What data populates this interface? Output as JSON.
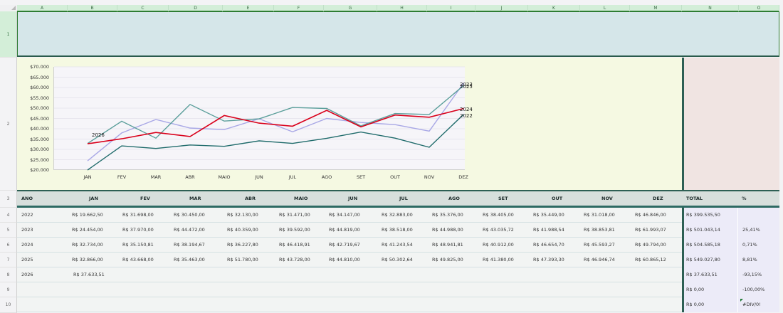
{
  "spreadsheet": {
    "columns": [
      "A",
      "B",
      "C",
      "D",
      "E",
      "F",
      "G",
      "H",
      "I",
      "J",
      "K",
      "L",
      "M",
      "N",
      "O"
    ],
    "rows": [
      "1",
      "2",
      "3",
      "4",
      "5",
      "6",
      "7",
      "8",
      "9",
      "10"
    ]
  },
  "table": {
    "headers": [
      "ANO",
      "JAN",
      "FEV",
      "MAR",
      "ABR",
      "MAIO",
      "JUN",
      "JUL",
      "AGO",
      "SET",
      "OUT",
      "NOV",
      "DEZ",
      "TOTAL",
      "%"
    ],
    "rows": [
      {
        "ano": "2022",
        "values": [
          "R$ 19.662,50",
          "R$ 31.698,00",
          "R$ 30.450,00",
          "R$ 32.130,00",
          "R$ 31.471,00",
          "R$ 34.147,00",
          "R$ 32.883,00",
          "R$ 35.376,00",
          "R$ 38.405,00",
          "R$ 35.449,00",
          "R$ 31.018,00",
          "R$ 46.846,00"
        ],
        "total": "R$ 399.535,50",
        "pct": ""
      },
      {
        "ano": "2023",
        "values": [
          "R$ 24.454,00",
          "R$ 37.970,00",
          "R$ 44.472,00",
          "R$ 40.359,00",
          "R$ 39.592,00",
          "R$ 44.819,00",
          "R$ 38.518,00",
          "R$ 44.988,00",
          "R$ 43.035,72",
          "R$ 41.988,54",
          "R$ 38.853,81",
          "R$ 61.993,07"
        ],
        "total": "R$ 501.043,14",
        "pct": "25,41%"
      },
      {
        "ano": "2024",
        "values": [
          "R$ 32.734,00",
          "R$ 35.150,81",
          "R$ 38.194,67",
          "R$ 36.227,80",
          "R$ 46.418,91",
          "R$ 42.719,67",
          "R$ 41.243,54",
          "R$ 48.941,81",
          "R$ 40.912,00",
          "R$ 46.654,70",
          "R$ 45.593,27",
          "R$ 49.794,00"
        ],
        "total": "R$ 504.585,18",
        "pct": "0,71%"
      },
      {
        "ano": "2025",
        "values": [
          "R$ 32.866,00",
          "R$ 43.668,00",
          "R$ 35.463,00",
          "R$ 51.780,00",
          "R$ 43.728,00",
          "R$ 44.810,00",
          "R$ 50.302,64",
          "R$ 49.825,00",
          "R$ 41.380,00",
          "R$ 47.393,30",
          "R$ 46.946,74",
          "R$ 60.865,12"
        ],
        "total": "R$ 549.027,80",
        "pct": "8,81%"
      },
      {
        "ano": "2026",
        "values": [
          "R$ 37.633,51",
          "",
          "",
          "",
          "",
          "",
          "",
          "",
          "",
          "",
          "",
          ""
        ],
        "total": "R$ 37.633,51",
        "pct": "-93,15%"
      },
      {
        "ano": "",
        "values": [
          "",
          "",
          "",
          "",
          "",
          "",
          "",
          "",
          "",
          "",
          "",
          ""
        ],
        "total": "R$ 0,00",
        "pct": "-100,00%"
      },
      {
        "ano": "",
        "values": [
          "",
          "",
          "",
          "",
          "",
          "",
          "",
          "",
          "",
          "",
          "",
          ""
        ],
        "total": "R$ 0,00",
        "pct": "#DIV/0!"
      }
    ]
  },
  "chart_data": {
    "type": "line",
    "title": "",
    "xlabel": "",
    "ylabel": "",
    "categories": [
      "JAN",
      "FEV",
      "MAR",
      "ABR",
      "MAIO",
      "JUN",
      "JUL",
      "AGO",
      "SET",
      "OUT",
      "NOV",
      "DEZ"
    ],
    "y_ticks": [
      "$70.000",
      "$65.000",
      "$60.000",
      "$55.000",
      "$50.000",
      "$45.000",
      "$40.000",
      "$35.000",
      "$30.000",
      "$25.000",
      "$20.000"
    ],
    "ylim": [
      20000,
      70000
    ],
    "grid": true,
    "legend": "data labels at line ends",
    "series": [
      {
        "name": "2022",
        "color": "#1f6b6b",
        "values": [
          19662.5,
          31698,
          30450,
          32130,
          31471,
          34147,
          32883,
          35376,
          38405,
          35449,
          31018,
          46846
        ]
      },
      {
        "name": "2023",
        "color": "#a9a8e6",
        "values": [
          24454,
          37970,
          44472,
          40359,
          39592,
          44819,
          38518,
          44988,
          43035.72,
          41988.54,
          38853.81,
          61993.07
        ]
      },
      {
        "name": "2024",
        "color": "#d9001b",
        "values": [
          32734,
          35150.81,
          38194.67,
          36227.8,
          46418.91,
          42719.67,
          41243.54,
          48941.81,
          40912,
          46654.7,
          45593.27,
          49794
        ]
      },
      {
        "name": "2025",
        "color": "#5a9e9a",
        "values": [
          32866,
          43668,
          35463,
          51780,
          43728,
          44810,
          50302.64,
          49825,
          41380,
          47393.3,
          46946.74,
          60865.12
        ]
      },
      {
        "name": "2026",
        "color": "#3b7a8a",
        "values": [
          37633.51
        ]
      }
    ],
    "annotations": [
      "2026",
      "2023",
      "2025",
      "2024",
      "2022"
    ]
  }
}
